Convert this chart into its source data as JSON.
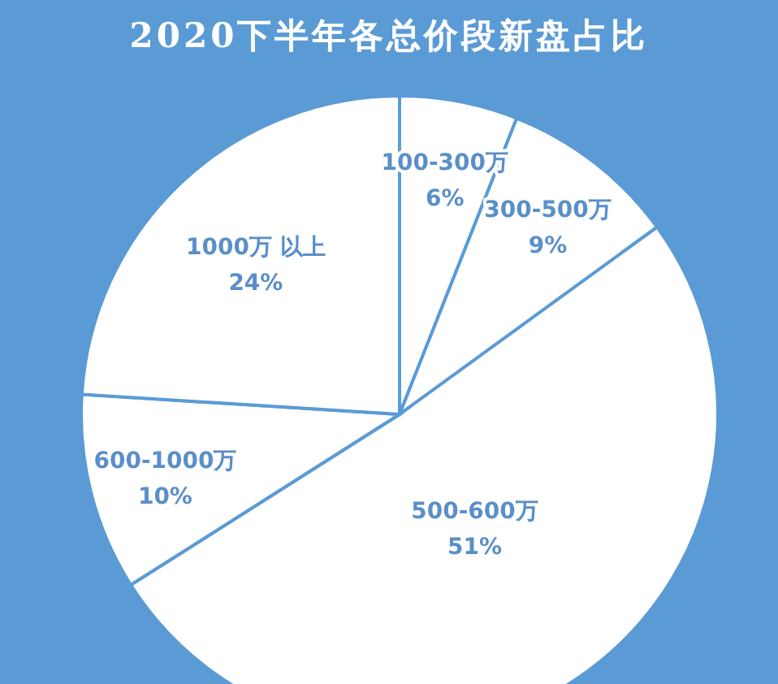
{
  "chart_data": {
    "type": "pie",
    "title": "2020下半年各总价段新盘占比",
    "categories": [
      "100-300万",
      "300-500万",
      "500-600万",
      "600-1000万",
      "1000万 以上"
    ],
    "values": [
      6,
      9,
      51,
      10,
      24
    ],
    "value_labels": [
      "6%",
      "9%",
      "51%",
      "10%",
      "24%"
    ],
    "colors": [
      "#ffffff",
      "#ffffff",
      "#ffffff",
      "#ffffff",
      "#ffffff"
    ]
  }
}
